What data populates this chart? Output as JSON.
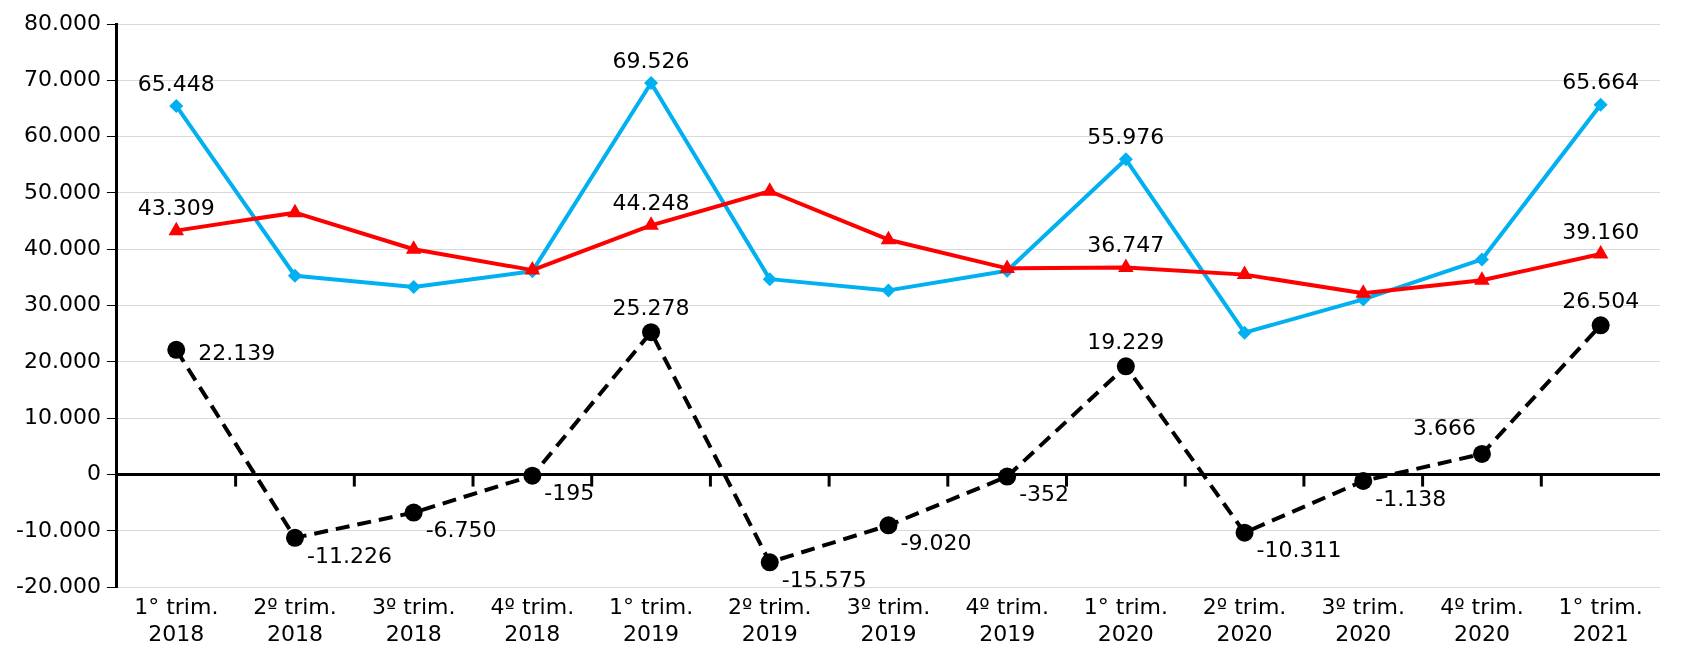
{
  "chart_data": {
    "type": "line",
    "categories": [
      "1° trim.\n2018",
      "2º trim.\n2018",
      "3º trim.\n2018",
      "4º trim.\n2018",
      "1° trim.\n2019",
      "2º trim.\n2019",
      "3º trim.\n2019",
      "4º trim.\n2019",
      "1° trim.\n2020",
      "2º trim.\n2020",
      "3º trim.\n2020",
      "4º trim.\n2020",
      "1° trim.\n2021"
    ],
    "series": [
      {
        "color": "#00b0f0",
        "marker": "diamond",
        "line_style": "solid",
        "values": [
          65448,
          35300,
          33300,
          36100,
          69526,
          34700,
          32700,
          36200,
          55976,
          25200,
          31100,
          38200,
          65664
        ],
        "value_labels": [
          "65.448",
          null,
          null,
          null,
          "69.526",
          null,
          null,
          null,
          "55.976",
          null,
          null,
          null,
          "65.664"
        ]
      },
      {
        "color": "#ff0000",
        "marker": "triangle",
        "line_style": "solid",
        "values": [
          43309,
          46500,
          40000,
          36300,
          44248,
          50300,
          41700,
          36600,
          36747,
          35500,
          32200,
          34500,
          39160
        ],
        "value_labels": [
          "43.309",
          null,
          null,
          null,
          "44.248",
          null,
          null,
          null,
          "36.747",
          null,
          null,
          null,
          "39.160"
        ]
      },
      {
        "color": "#000000",
        "marker": "circle",
        "line_style": "dashed",
        "values": [
          22139,
          -11226,
          -6750,
          -195,
          25278,
          -15575,
          -9020,
          -352,
          19229,
          -10311,
          -1138,
          3666,
          26504
        ],
        "value_labels": [
          "22.139",
          "-11.226",
          "-6.750",
          "-195",
          "25.278",
          "-15.575",
          "-9.020",
          "-352",
          "19.229",
          "-10.311",
          "-1.138",
          "3.666",
          "26.504"
        ]
      }
    ],
    "ylim": [
      -20000,
      80000
    ],
    "yticks": [
      {
        "value": -20000,
        "label": "-20.000"
      },
      {
        "value": -10000,
        "label": "-10.000"
      },
      0,
      {
        "value": 10000,
        "label": "10.000"
      },
      {
        "value": 20000,
        "label": "20.000"
      },
      {
        "value": 30000,
        "label": "30.000"
      },
      {
        "value": 40000,
        "label": "40.000"
      },
      {
        "value": 50000,
        "label": "50.000"
      },
      {
        "value": 60000,
        "label": "60.000"
      },
      {
        "value": 70000,
        "label": "70.000"
      },
      {
        "value": 80000,
        "label": "80.000"
      }
    ],
    "grid": "y",
    "legend": false
  }
}
